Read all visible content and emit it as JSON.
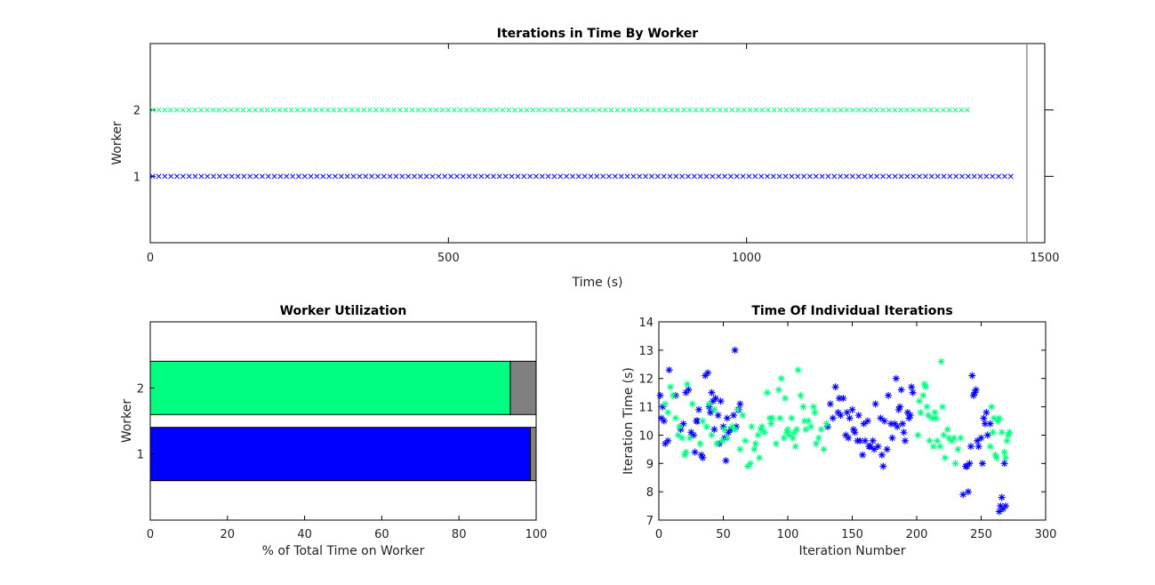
{
  "chart_data": [
    {
      "type": "scatter",
      "title": "Iterations in Time By Worker",
      "xlabel": "Time (s)",
      "ylabel": "Worker",
      "xlim": [
        0,
        1500
      ],
      "ylim": [
        0,
        3
      ],
      "xticks": [
        "0",
        "500",
        "1000",
        "1500"
      ],
      "yticks": [
        "1",
        "2"
      ],
      "end_marker_time": 1470,
      "series": [
        {
          "worker": 1,
          "marker": "x",
          "color": "#0000ff",
          "start": 4,
          "end": 1443,
          "count": 142
        },
        {
          "worker": 2,
          "marker": "x",
          "color": "#00ff80",
          "start": 4,
          "end": 1370,
          "count": 136
        }
      ]
    },
    {
      "type": "bar",
      "orientation": "horizontal",
      "title": "Worker Utilization",
      "xlabel": "% of Total Time on Worker",
      "ylabel": "Worker",
      "xlim": [
        0,
        100
      ],
      "xticks": [
        "0",
        "20",
        "40",
        "60",
        "80",
        "100"
      ],
      "categories": [
        "1",
        "2"
      ],
      "series": [
        {
          "values": [
            98.5,
            93.3
          ],
          "colors": [
            "#0000ff",
            "#00ff80"
          ]
        },
        {
          "values": [
            1.5,
            6.7
          ],
          "color": "#808080"
        }
      ]
    },
    {
      "type": "scatter",
      "title": "Time Of Individual Iterations",
      "xlabel": "Iteration Number",
      "ylabel": "Iteration Time (s)",
      "xlim": [
        0,
        300
      ],
      "ylim": [
        7,
        14
      ],
      "xticks": [
        "0",
        "50",
        "100",
        "150",
        "200",
        "250",
        "300"
      ],
      "yticks": [
        "7",
        "8",
        "9",
        "10",
        "11",
        "12",
        "13",
        "14"
      ],
      "series": [
        {
          "marker": "*",
          "color": "#0000ff",
          "points": [
            [
              1,
              11.4
            ],
            [
              2,
              10.6
            ],
            [
              3,
              11.0
            ],
            [
              4,
              10.5
            ],
            [
              5,
              9.7
            ],
            [
              7,
              9.8
            ],
            [
              8,
              12.3
            ],
            [
              13,
              11.4
            ],
            [
              17,
              10.2
            ],
            [
              19,
              10.4
            ],
            [
              21,
              11.5
            ],
            [
              23,
              11.6
            ],
            [
              25,
              10.1
            ],
            [
              27,
              10.0
            ],
            [
              28,
              9.4
            ],
            [
              29,
              10.5
            ],
            [
              30,
              10.5
            ],
            [
              31,
              10.9
            ],
            [
              33,
              9.3
            ],
            [
              34,
              9.2
            ],
            [
              36,
              12.1
            ],
            [
              38,
              12.2
            ],
            [
              39,
              11.0
            ],
            [
              40,
              10.8
            ],
            [
              41,
              11.5
            ],
            [
              42,
              11.2
            ],
            [
              43,
              10.2
            ],
            [
              44,
              11.3
            ],
            [
              46,
              10.7
            ],
            [
              47,
              9.7
            ],
            [
              48,
              11.2
            ],
            [
              50,
              10.3
            ],
            [
              51,
              9.9
            ],
            [
              52,
              9.1
            ],
            [
              53,
              10.6
            ],
            [
              54,
              10.1
            ],
            [
              56,
              10.2
            ],
            [
              58,
              10.7
            ],
            [
              59,
              13.0
            ],
            [
              60,
              10.3
            ],
            [
              62,
              10.9
            ],
            [
              63,
              11.1
            ],
            [
              131,
              10.3
            ],
            [
              133,
              11.1
            ],
            [
              135,
              10.6
            ],
            [
              137,
              11.7
            ],
            [
              139,
              10.8
            ],
            [
              140,
              11.3
            ],
            [
              141,
              10.7
            ],
            [
              143,
              11.3
            ],
            [
              145,
              10.0
            ],
            [
              146,
              10.8
            ],
            [
              147,
              9.9
            ],
            [
              148,
              10.6
            ],
            [
              150,
              10.9
            ],
            [
              151,
              10.2
            ],
            [
              152,
              10.1
            ],
            [
              154,
              9.8
            ],
            [
              155,
              10.7
            ],
            [
              156,
              9.8
            ],
            [
              158,
              9.3
            ],
            [
              159,
              10.4
            ],
            [
              160,
              9.8
            ],
            [
              162,
              10.5
            ],
            [
              163,
              9.6
            ],
            [
              164,
              9.6
            ],
            [
              166,
              9.8
            ],
            [
              167,
              9.5
            ],
            [
              168,
              11.1
            ],
            [
              170,
              9.6
            ],
            [
              172,
              10.6
            ],
            [
              173,
              9.3
            ],
            [
              174,
              8.9
            ],
            [
              175,
              10.5
            ],
            [
              177,
              9.5
            ],
            [
              178,
              11.4
            ],
            [
              180,
              10.4
            ],
            [
              181,
              9.9
            ],
            [
              183,
              10.4
            ],
            [
              184,
              12.0
            ],
            [
              185,
              10.3
            ],
            [
              186,
              10.9
            ],
            [
              187,
              11.0
            ],
            [
              188,
              11.6
            ],
            [
              189,
              10.4
            ],
            [
              190,
              10.1
            ],
            [
              191,
              9.8
            ],
            [
              193,
              10.8
            ],
            [
              194,
              10.6
            ],
            [
              195,
              10.7
            ],
            [
              196,
              11.7
            ],
            [
              197,
              11.5
            ],
            [
              236,
              7.9
            ],
            [
              238,
              8.9
            ],
            [
              239,
              8.9
            ],
            [
              240,
              8.0
            ],
            [
              241,
              9.0
            ],
            [
              242,
              9.6
            ],
            [
              243,
              12.1
            ],
            [
              244,
              11.4
            ],
            [
              245,
              11.5
            ],
            [
              246,
              11.6
            ],
            [
              247,
              9.8
            ],
            [
              248,
              9.6
            ],
            [
              250,
              9.9
            ],
            [
              251,
              9.0
            ],
            [
              252,
              10.6
            ],
            [
              253,
              10.4
            ],
            [
              254,
              10.8
            ],
            [
              255,
              10.0
            ],
            [
              257,
              10.4
            ],
            [
              264,
              7.3
            ],
            [
              265,
              7.5
            ],
            [
              266,
              7.8
            ],
            [
              267,
              7.4
            ],
            [
              268,
              9.0
            ],
            [
              269,
              7.5
            ]
          ]
        },
        {
          "marker": "*",
          "color": "#00ff80",
          "points": [
            [
              5,
              11.1
            ],
            [
              7,
              10.8
            ],
            [
              9,
              11.7
            ],
            [
              11,
              11.4
            ],
            [
              13,
              10.6
            ],
            [
              15,
              10.0
            ],
            [
              16,
              10.3
            ],
            [
              18,
              9.9
            ],
            [
              20,
              9.3
            ],
            [
              21,
              9.4
            ],
            [
              22,
              11.8
            ],
            [
              24,
              9.9
            ],
            [
              26,
              11.1
            ],
            [
              32,
              9.7
            ],
            [
              34,
              10.5
            ],
            [
              37,
              10.3
            ],
            [
              39,
              11.1
            ],
            [
              41,
              10.0
            ],
            [
              43,
              10.9
            ],
            [
              45,
              9.7
            ],
            [
              49,
              9.8
            ],
            [
              51,
              10.2
            ],
            [
              53,
              9.9
            ],
            [
              57,
              10.3
            ],
            [
              59,
              10.2
            ],
            [
              61,
              10.9
            ],
            [
              63,
              9.5
            ],
            [
              65,
              10.7
            ],
            [
              67,
              9.8
            ],
            [
              69,
              8.9
            ],
            [
              71,
              9.0
            ],
            [
              72,
              10.3
            ],
            [
              74,
              9.5
            ],
            [
              75,
              9.7
            ],
            [
              77,
              10.0
            ],
            [
              78,
              9.2
            ],
            [
              79,
              10.2
            ],
            [
              80,
              10.3
            ],
            [
              82,
              10.1
            ],
            [
              84,
              11.5
            ],
            [
              86,
              10.6
            ],
            [
              87,
              10.4
            ],
            [
              88,
              10.6
            ],
            [
              91,
              9.7
            ],
            [
              93,
              11.6
            ],
            [
              94,
              10.6
            ],
            [
              95,
              12.0
            ],
            [
              97,
              9.9
            ],
            [
              98,
              11.3
            ],
            [
              99,
              10.1
            ],
            [
              100,
              10.2
            ],
            [
              101,
              10.0
            ],
            [
              103,
              10.6
            ],
            [
              104,
              9.9
            ],
            [
              105,
              10.1
            ],
            [
              106,
              9.6
            ],
            [
              107,
              10.2
            ],
            [
              108,
              12.3
            ],
            [
              110,
              11.4
            ],
            [
              112,
              11.0
            ],
            [
              113,
              10.5
            ],
            [
              114,
              10.2
            ],
            [
              116,
              10.5
            ],
            [
              118,
              10.3
            ],
            [
              120,
              11.0
            ],
            [
              121,
              10.8
            ],
            [
              122,
              9.7
            ],
            [
              124,
              9.9
            ],
            [
              126,
              10.2
            ],
            [
              128,
              9.5
            ],
            [
              130,
              10.4
            ],
            [
              201,
              10.0
            ],
            [
              202,
              11.2
            ],
            [
              203,
              10.8
            ],
            [
              205,
              11.4
            ],
            [
              206,
              11.8
            ],
            [
              207,
              11.7
            ],
            [
              208,
              11.0
            ],
            [
              209,
              10.7
            ],
            [
              210,
              9.8
            ],
            [
              212,
              10.6
            ],
            [
              213,
              9.6
            ],
            [
              214,
              10.8
            ],
            [
              215,
              10.6
            ],
            [
              216,
              9.8
            ],
            [
              218,
              9.6
            ],
            [
              219,
              12.6
            ],
            [
              220,
              11.0
            ],
            [
              221,
              10.0
            ],
            [
              222,
              9.2
            ],
            [
              224,
              10.2
            ],
            [
              225,
              9.9
            ],
            [
              227,
              9.8
            ],
            [
              229,
              9.9
            ],
            [
              230,
              9.0
            ],
            [
              232,
              9.5
            ],
            [
              234,
              9.9
            ],
            [
              257,
              9.6
            ],
            [
              258,
              11.0
            ],
            [
              259,
              10.1
            ],
            [
              260,
              10.6
            ],
            [
              261,
              9.3
            ],
            [
              262,
              9.2
            ],
            [
              263,
              10.5
            ],
            [
              264,
              10.6
            ],
            [
              266,
              10.1
            ],
            [
              268,
              9.4
            ],
            [
              269,
              9.2
            ],
            [
              270,
              9.8
            ],
            [
              271,
              10.0
            ],
            [
              272,
              10.1
            ]
          ]
        }
      ]
    }
  ]
}
